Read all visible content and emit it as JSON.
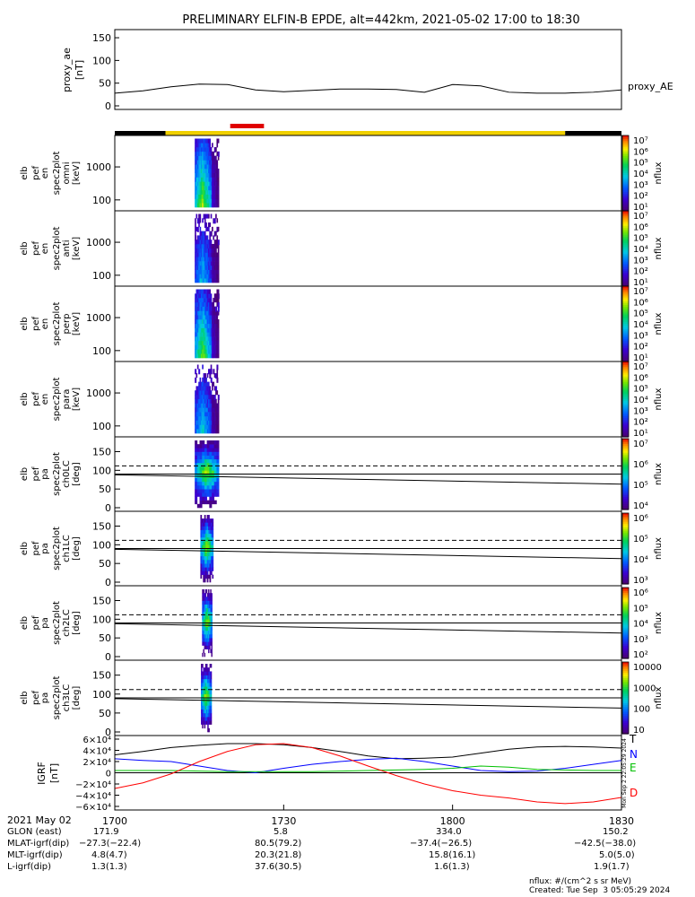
{
  "title": "PRELIMINARY ELFIN-B EPDE, alt=442km, 2021-05-02 17:00 to 18:30",
  "colors": {
    "ae_line": "#000000",
    "science_bar": "#f0d000",
    "sector_bar": "#000000",
    "highlight_bar": "#e00000",
    "igrf_t": "#000000",
    "igrf_n": "#0000ff",
    "igrf_e": "#00c000",
    "igrf_d": "#ff0000"
  },
  "ae_panel": {
    "ylabel_lines": [
      "proxy_ae",
      "[nT]"
    ],
    "legend": "proxy_AE",
    "ytick_labels": [
      "150",
      "100",
      "50",
      "0"
    ]
  },
  "spectra_panels": [
    {
      "ylabel_lines": [
        "elb",
        "pef",
        "en",
        "spec2plot",
        "omni",
        "[keV]"
      ],
      "ytick_labels": [
        "1000",
        "100"
      ],
      "colorbar_ticks": [
        "10⁷",
        "10⁶",
        "10⁵",
        "10⁴",
        "10³",
        "10²",
        "10¹"
      ],
      "zlabel": "nflux"
    },
    {
      "ylabel_lines": [
        "elb",
        "pef",
        "en",
        "spec2plot",
        "anti",
        "[keV]"
      ],
      "ytick_labels": [
        "1000",
        "100"
      ],
      "colorbar_ticks": [
        "10⁷",
        "10⁶",
        "10⁵",
        "10⁴",
        "10³",
        "10²",
        "10¹"
      ],
      "zlabel": "nflux"
    },
    {
      "ylabel_lines": [
        "elb",
        "pef",
        "en",
        "spec2plot",
        "perp",
        "[keV]"
      ],
      "ytick_labels": [
        "1000",
        "100"
      ],
      "colorbar_ticks": [
        "10⁷",
        "10⁶",
        "10⁵",
        "10⁴",
        "10³",
        "10²",
        "10¹"
      ],
      "zlabel": "nflux"
    },
    {
      "ylabel_lines": [
        "elb",
        "pef",
        "en",
        "spec2plot",
        "para",
        "[keV]"
      ],
      "ytick_labels": [
        "1000",
        "100"
      ],
      "colorbar_ticks": [
        "10⁷",
        "10⁶",
        "10⁵",
        "10⁴",
        "10³",
        "10²",
        "10¹"
      ],
      "zlabel": "nflux"
    }
  ],
  "pa_panels": [
    {
      "ylabel_lines": [
        "elb",
        "pef",
        "pa",
        "spec2plot",
        "ch0LC",
        "[deg]"
      ],
      "ytick_labels": [
        "150",
        "100",
        "50",
        "0"
      ],
      "colorbar_ticks": [
        "10⁷",
        "10⁶",
        "10⁵",
        "10⁴"
      ],
      "zlabel": "nflux"
    },
    {
      "ylabel_lines": [
        "elb",
        "pef",
        "pa",
        "spec2plot",
        "ch1LC",
        "[deg]"
      ],
      "ytick_labels": [
        "150",
        "100",
        "50",
        "0"
      ],
      "colorbar_ticks": [
        "10⁶",
        "10⁵",
        "10⁴",
        "10³"
      ],
      "zlabel": "nflux"
    },
    {
      "ylabel_lines": [
        "elb",
        "pef",
        "pa",
        "spec2plot",
        "ch2LC",
        "[deg]"
      ],
      "ytick_labels": [
        "150",
        "100",
        "50",
        "0"
      ],
      "colorbar_ticks": [
        "10⁶",
        "10⁵",
        "10⁴",
        "10³",
        "10²"
      ],
      "zlabel": "nflux"
    },
    {
      "ylabel_lines": [
        "elb",
        "pef",
        "pa",
        "spec2plot",
        "ch3LC",
        "[deg]"
      ],
      "ytick_labels": [
        "150",
        "100",
        "50",
        "0"
      ],
      "colorbar_ticks": [
        "10000",
        "1000",
        "100",
        "10"
      ],
      "zlabel": "nflux"
    }
  ],
  "igrf_panel": {
    "ylabel_lines": [
      "IGRF",
      "[nT]"
    ],
    "ytick_labels": [
      "6×10⁴",
      "4×10⁴",
      "2×10⁴",
      "0",
      "−2×10⁴",
      "−4×10⁴",
      "−6×10⁴"
    ],
    "legend": [
      "T",
      "N",
      "E",
      "D"
    ],
    "side_note": "Mon Sep  2 22:05:29 2024"
  },
  "chart_data": [
    {
      "type": "line",
      "title": "PRELIMINARY ELFIN-B EPDE, alt=442km, 2021-05-02 17:00 to 18:30",
      "ylabel": "proxy_ae [nT]",
      "ylim": [
        0,
        160
      ],
      "x_minutes": [
        0,
        5,
        10,
        15,
        20,
        25,
        30,
        35,
        40,
        45,
        50,
        55,
        60,
        65,
        70,
        75,
        80,
        85,
        90
      ],
      "series": [
        {
          "name": "proxy_AE",
          "values": [
            28,
            33,
            42,
            48,
            47,
            35,
            31,
            34,
            37,
            37,
            36,
            30,
            47,
            44,
            30,
            28,
            28,
            30,
            35
          ]
        }
      ]
    },
    {
      "type": "heatmap",
      "description": "energy spectrograms (omni, anti, perp, para) and pitch-angle spectrograms (ch0LC-ch3LC); electron flux burst between ~17:15 and ~17:20",
      "yrange_energy_keV": [
        60,
        7000
      ],
      "yrange_pa_deg": [
        0,
        180
      ],
      "loss_cone_deg": [
        90,
        112
      ],
      "active_interval_minutes": [
        14.5,
        18.5
      ]
    },
    {
      "type": "line",
      "ylabel": "IGRF [nT]",
      "ylim": [
        -60000,
        60000
      ],
      "x_minutes": [
        0,
        5,
        10,
        15,
        20,
        25,
        30,
        35,
        40,
        45,
        50,
        55,
        60,
        65,
        70,
        75,
        80,
        85,
        90
      ],
      "series": [
        {
          "name": "T",
          "values": [
            32000,
            38000,
            45000,
            49000,
            52000,
            52000,
            50000,
            45000,
            38000,
            30000,
            25000,
            26000,
            28000,
            35000,
            42000,
            46000,
            47000,
            46000,
            44000
          ]
        },
        {
          "name": "N",
          "values": [
            25000,
            22000,
            20000,
            12000,
            4000,
            0,
            8000,
            15000,
            20000,
            24000,
            26000,
            20000,
            12000,
            4000,
            2000,
            3000,
            8000,
            15000,
            22000
          ]
        },
        {
          "name": "E",
          "values": [
            4000,
            4000,
            4000,
            3000,
            2000,
            2000,
            2000,
            2000,
            3000,
            4000,
            5000,
            6000,
            8000,
            12000,
            10000,
            6000,
            5000,
            4000,
            4000
          ]
        },
        {
          "name": "D",
          "values": [
            -28000,
            -18000,
            -2000,
            20000,
            38000,
            50000,
            52000,
            45000,
            30000,
            12000,
            -5000,
            -20000,
            -32000,
            -40000,
            -45000,
            -52000,
            -55000,
            -52000,
            -44000
          ]
        }
      ]
    }
  ],
  "time_axis": {
    "tick_labels": [
      "1700",
      "1730",
      "1800",
      "1830"
    ],
    "date_label": "2021 May 02"
  },
  "ephemeris": {
    "labels": [
      "GLON (east)",
      "MLAT-igrf(dip)",
      "MLT-igrf(dip)",
      "L-igrf(dip)"
    ],
    "columns": [
      [
        "171.9",
        "−27.3(−22.4)",
        "4.8(4.7)",
        "1.3(1.3)"
      ],
      [
        "5.8",
        "80.5(79.2)",
        "20.3(21.8)",
        "37.6(30.5)"
      ],
      [
        "334.0",
        "−37.4(−26.5)",
        "15.8(16.1)",
        "1.6(1.3)"
      ],
      [
        "150.2",
        "−42.5(−38.0)",
        "5.0(5.0)",
        "1.9(1.7)"
      ]
    ]
  },
  "footer": {
    "units": "nflux: #/(cm^2 s sr MeV)",
    "created": "Created: Tue Sep  3 05:05:29 2024"
  }
}
